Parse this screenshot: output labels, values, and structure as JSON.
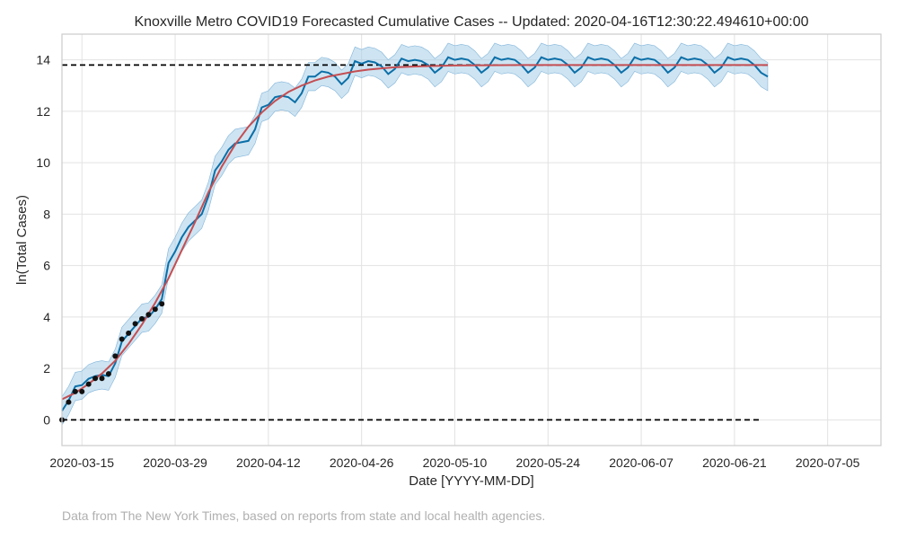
{
  "chart_data": {
    "type": "line",
    "title": "Knoxville Metro COVID19 Forecasted Cumulative Cases -- Updated: 2020-04-16T12:30:22.494610+00:00",
    "xlabel": "Date [YYYY-MM-DD]",
    "ylabel": "ln(Total Cases)",
    "x_range": [
      "2020-03-12",
      "2020-07-13"
    ],
    "ylim": [
      -1.0,
      15.0
    ],
    "grid": true,
    "x_ticks": [
      "2020-03-15",
      "2020-03-29",
      "2020-04-12",
      "2020-04-26",
      "2020-05-10",
      "2020-05-24",
      "2020-06-07",
      "2020-06-21",
      "2020-07-05"
    ],
    "y_ticks": [
      0,
      2,
      4,
      6,
      8,
      10,
      12,
      14
    ],
    "reference_lines": [
      {
        "style": "dashed",
        "color": "#000000",
        "y": 13.8,
        "x_start": "2020-03-12",
        "x_end": "2020-06-26"
      },
      {
        "style": "dashed",
        "color": "#000000",
        "y": 0,
        "x_start": "2020-03-12",
        "x_end": "2020-06-25"
      }
    ],
    "observed": {
      "color": "#111111",
      "points": [
        [
          "2020-03-12",
          0.0
        ],
        [
          "2020-03-13",
          0.69
        ],
        [
          "2020-03-14",
          1.1
        ],
        [
          "2020-03-15",
          1.1
        ],
        [
          "2020-03-16",
          1.39
        ],
        [
          "2020-03-17",
          1.61
        ],
        [
          "2020-03-18",
          1.61
        ],
        [
          "2020-03-19",
          1.79
        ],
        [
          "2020-03-20",
          2.48
        ],
        [
          "2020-03-21",
          3.14
        ],
        [
          "2020-03-22",
          3.37
        ],
        [
          "2020-03-23",
          3.74
        ],
        [
          "2020-03-24",
          3.93
        ],
        [
          "2020-03-25",
          4.09
        ],
        [
          "2020-03-26",
          4.3
        ],
        [
          "2020-03-27",
          4.51
        ]
      ]
    },
    "forecast": {
      "color": "#0b6fa8",
      "band_color": "#a6cde8",
      "band_width": 0.55,
      "start": "2020-03-12",
      "end": "2020-06-26",
      "points": [
        [
          "2020-03-12",
          0.35
        ],
        [
          "2020-03-13",
          0.75
        ],
        [
          "2020-03-14",
          1.3
        ],
        [
          "2020-03-15",
          1.35
        ],
        [
          "2020-03-16",
          1.6
        ],
        [
          "2020-03-17",
          1.7
        ],
        [
          "2020-03-18",
          1.75
        ],
        [
          "2020-03-19",
          1.7
        ],
        [
          "2020-03-20",
          2.2
        ],
        [
          "2020-03-21",
          3.05
        ],
        [
          "2020-03-22",
          3.35
        ],
        [
          "2020-03-23",
          3.65
        ],
        [
          "2020-03-24",
          3.95
        ],
        [
          "2020-03-25",
          4.0
        ],
        [
          "2020-03-26",
          4.3
        ],
        [
          "2020-03-27",
          4.7
        ],
        [
          "2020-03-28",
          6.1
        ],
        [
          "2020-03-29",
          6.55
        ],
        [
          "2020-03-30",
          7.1
        ],
        [
          "2020-03-31",
          7.5
        ],
        [
          "2020-04-01",
          7.75
        ],
        [
          "2020-04-02",
          8.0
        ],
        [
          "2020-04-03",
          8.7
        ],
        [
          "2020-04-04",
          9.7
        ],
        [
          "2020-04-05",
          10.05
        ],
        [
          "2020-04-06",
          10.5
        ],
        [
          "2020-04-07",
          10.75
        ],
        [
          "2020-04-08",
          10.8
        ],
        [
          "2020-04-09",
          10.85
        ],
        [
          "2020-04-10",
          11.3
        ],
        [
          "2020-04-11",
          12.15
        ],
        [
          "2020-04-12",
          12.25
        ],
        [
          "2020-04-13",
          12.55
        ],
        [
          "2020-04-14",
          12.6
        ],
        [
          "2020-04-15",
          12.55
        ],
        [
          "2020-04-16",
          12.35
        ],
        [
          "2020-04-17",
          12.7
        ],
        [
          "2020-04-18",
          13.35
        ],
        [
          "2020-04-19",
          13.35
        ],
        [
          "2020-04-20",
          13.55
        ],
        [
          "2020-04-21",
          13.5
        ],
        [
          "2020-04-22",
          13.35
        ],
        [
          "2020-04-23",
          13.05
        ],
        [
          "2020-04-24",
          13.3
        ],
        [
          "2020-04-25",
          13.95
        ],
        [
          "2020-04-26",
          13.85
        ],
        [
          "2020-04-27",
          13.95
        ],
        [
          "2020-04-28",
          13.9
        ],
        [
          "2020-04-29",
          13.75
        ],
        [
          "2020-04-30",
          13.45
        ],
        [
          "2020-05-01",
          13.65
        ],
        [
          "2020-05-02",
          14.05
        ],
        [
          "2020-05-03",
          13.95
        ],
        [
          "2020-05-04",
          14.0
        ],
        [
          "2020-05-05",
          13.95
        ],
        [
          "2020-05-06",
          13.8
        ],
        [
          "2020-05-07",
          13.5
        ],
        [
          "2020-05-08",
          13.7
        ],
        [
          "2020-05-09",
          14.1
        ],
        [
          "2020-05-10",
          14.0
        ],
        [
          "2020-05-11",
          14.05
        ],
        [
          "2020-05-12",
          14.0
        ],
        [
          "2020-05-13",
          13.8
        ],
        [
          "2020-05-14",
          13.5
        ],
        [
          "2020-05-15",
          13.7
        ],
        [
          "2020-05-16",
          14.1
        ],
        [
          "2020-05-17",
          14.0
        ],
        [
          "2020-05-18",
          14.05
        ],
        [
          "2020-05-19",
          14.0
        ],
        [
          "2020-05-20",
          13.8
        ],
        [
          "2020-05-21",
          13.5
        ],
        [
          "2020-05-22",
          13.7
        ],
        [
          "2020-05-23",
          14.1
        ],
        [
          "2020-05-24",
          14.0
        ],
        [
          "2020-05-25",
          14.05
        ],
        [
          "2020-05-26",
          14.0
        ],
        [
          "2020-05-27",
          13.8
        ],
        [
          "2020-05-28",
          13.5
        ],
        [
          "2020-05-29",
          13.7
        ],
        [
          "2020-05-30",
          14.1
        ],
        [
          "2020-05-31",
          14.0
        ],
        [
          "2020-06-01",
          14.05
        ],
        [
          "2020-06-02",
          14.0
        ],
        [
          "2020-06-03",
          13.8
        ],
        [
          "2020-06-04",
          13.5
        ],
        [
          "2020-06-05",
          13.7
        ],
        [
          "2020-06-06",
          14.1
        ],
        [
          "2020-06-07",
          14.0
        ],
        [
          "2020-06-08",
          14.05
        ],
        [
          "2020-06-09",
          14.0
        ],
        [
          "2020-06-10",
          13.8
        ],
        [
          "2020-06-11",
          13.5
        ],
        [
          "2020-06-12",
          13.7
        ],
        [
          "2020-06-13",
          14.1
        ],
        [
          "2020-06-14",
          14.0
        ],
        [
          "2020-06-15",
          14.05
        ],
        [
          "2020-06-16",
          14.0
        ],
        [
          "2020-06-17",
          13.8
        ],
        [
          "2020-06-18",
          13.5
        ],
        [
          "2020-06-19",
          13.7
        ],
        [
          "2020-06-20",
          14.1
        ],
        [
          "2020-06-21",
          14.0
        ],
        [
          "2020-06-22",
          14.05
        ],
        [
          "2020-06-23",
          14.0
        ],
        [
          "2020-06-24",
          13.8
        ],
        [
          "2020-06-25",
          13.5
        ],
        [
          "2020-06-26",
          13.35
        ]
      ]
    },
    "fit": {
      "color": "#c44e52",
      "points": [
        [
          "2020-03-12",
          0.8
        ],
        [
          "2020-03-14",
          1.05
        ],
        [
          "2020-03-16",
          1.4
        ],
        [
          "2020-03-18",
          1.8
        ],
        [
          "2020-03-20",
          2.3
        ],
        [
          "2020-03-22",
          2.95
        ],
        [
          "2020-03-24",
          3.7
        ],
        [
          "2020-03-26",
          4.55
        ],
        [
          "2020-03-28",
          5.5
        ],
        [
          "2020-03-30",
          6.6
        ],
        [
          "2020-04-01",
          7.7
        ],
        [
          "2020-04-03",
          8.85
        ],
        [
          "2020-04-05",
          9.85
        ],
        [
          "2020-04-07",
          10.7
        ],
        [
          "2020-04-09",
          11.4
        ],
        [
          "2020-04-11",
          11.95
        ],
        [
          "2020-04-13",
          12.4
        ],
        [
          "2020-04-15",
          12.75
        ],
        [
          "2020-04-17",
          13.0
        ],
        [
          "2020-04-19",
          13.2
        ],
        [
          "2020-04-21",
          13.35
        ],
        [
          "2020-04-23",
          13.45
        ],
        [
          "2020-04-25",
          13.55
        ],
        [
          "2020-04-27",
          13.62
        ],
        [
          "2020-04-29",
          13.67
        ],
        [
          "2020-05-01",
          13.71
        ],
        [
          "2020-05-05",
          13.75
        ],
        [
          "2020-05-10",
          13.78
        ],
        [
          "2020-05-20",
          13.8
        ],
        [
          "2020-06-26",
          13.8
        ]
      ]
    }
  },
  "footer": {
    "source": "Data from The New York Times, based on reports from state and local health agencies."
  }
}
